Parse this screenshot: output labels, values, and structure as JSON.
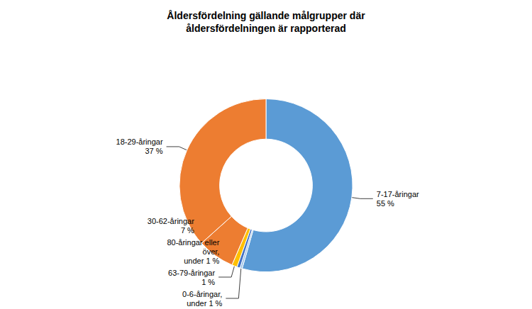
{
  "chart_data": {
    "type": "donut",
    "title": "Åldersfördelning gällande målgrupper där\nåldersfördelningen är rapporterad",
    "categories": [
      "7-17-åringar\n55 %",
      "0-6-åringar,\nunder 1 %",
      "80-åringar eller\növer,\nunder 1 %",
      "63-79-åringar\n1 %",
      "30-62-åringar\n7 %",
      "18-29-åringar\n37 %"
    ],
    "values": [
      55,
      0.4,
      0.6,
      1,
      7,
      37
    ],
    "colors": [
      "#5B9BD5",
      "#9DC3E6",
      "#4472C4",
      "#FFC000",
      "#ED7D31",
      "#ED7D31"
    ]
  }
}
